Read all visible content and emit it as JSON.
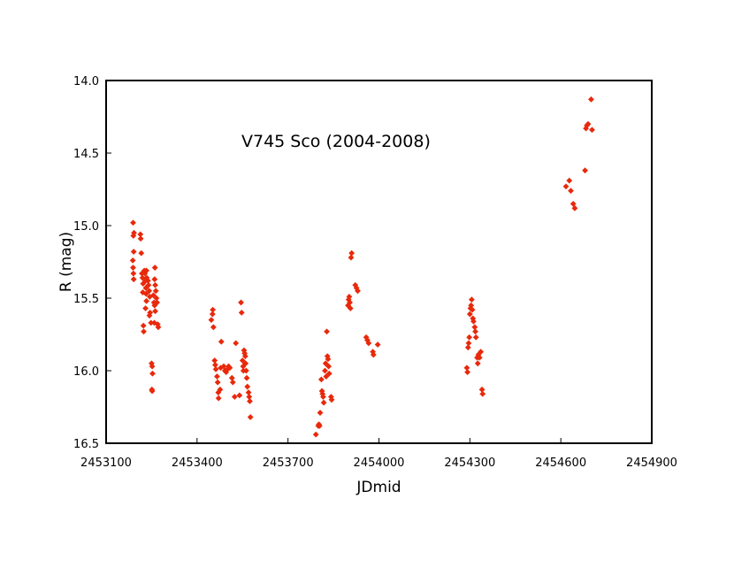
{
  "chart_data": {
    "type": "scatter",
    "title": "V745 Sco (2004-2008)",
    "xlabel": "JDmid",
    "ylabel": "R (mag)",
    "xlim": [
      2453100,
      2454900
    ],
    "ylim": [
      16.5,
      14.0
    ],
    "y_inverted": true,
    "grid": false,
    "legend": "none",
    "marker": "diamond",
    "marker_color": "#e8290b",
    "x_ticks": [
      "2453100",
      "2453400",
      "2453700",
      "2454000",
      "2454300",
      "2454600",
      "2454900"
    ],
    "y_ticks": [
      "14.0",
      "14.5",
      "15.0",
      "15.5",
      "16.0",
      "16.5"
    ],
    "x_tick_values": [
      2453100,
      2453400,
      2453700,
      2454000,
      2454300,
      2454600,
      2454900
    ],
    "y_tick_values": [
      14.0,
      14.5,
      15.0,
      15.5,
      16.0,
      16.5
    ],
    "points": [
      [
        2453189,
        14.98
      ],
      [
        2453192,
        15.05
      ],
      [
        2453190,
        15.07
      ],
      [
        2453191,
        15.18
      ],
      [
        2453188,
        15.24
      ],
      [
        2453189,
        15.29
      ],
      [
        2453190,
        15.33
      ],
      [
        2453191,
        15.37
      ],
      [
        2453213,
        15.06
      ],
      [
        2453214,
        15.09
      ],
      [
        2453216,
        15.19
      ],
      [
        2453218,
        15.33
      ],
      [
        2453220,
        15.36
      ],
      [
        2453222,
        15.4
      ],
      [
        2453221,
        15.46
      ],
      [
        2453223,
        15.69
      ],
      [
        2453224,
        15.73
      ],
      [
        2453226,
        15.31
      ],
      [
        2453228,
        15.33
      ],
      [
        2453230,
        15.38
      ],
      [
        2453231,
        15.43
      ],
      [
        2453232,
        15.47
      ],
      [
        2453233,
        15.52
      ],
      [
        2453230,
        15.57
      ],
      [
        2453233,
        15.31
      ],
      [
        2453234,
        15.36
      ],
      [
        2453238,
        15.38
      ],
      [
        2453240,
        15.41
      ],
      [
        2453242,
        15.45
      ],
      [
        2453244,
        15.49
      ],
      [
        2453245,
        15.6
      ],
      [
        2453248,
        15.67
      ],
      [
        2453243,
        15.62
      ],
      [
        2453250,
        15.95
      ],
      [
        2453252,
        15.97
      ],
      [
        2453253,
        16.02
      ],
      [
        2453251,
        16.13
      ],
      [
        2453252,
        16.14
      ],
      [
        2453256,
        15.48
      ],
      [
        2453258,
        15.53
      ],
      [
        2453260,
        15.55
      ],
      [
        2453262,
        15.59
      ],
      [
        2453259,
        15.67
      ],
      [
        2453261,
        15.29
      ],
      [
        2453260,
        15.37
      ],
      [
        2453262,
        15.41
      ],
      [
        2453264,
        15.45
      ],
      [
        2453266,
        15.5
      ],
      [
        2453268,
        15.53
      ],
      [
        2453270,
        15.68
      ],
      [
        2453272,
        15.7
      ],
      [
        2453447,
        15.65
      ],
      [
        2453452,
        15.58
      ],
      [
        2453451,
        15.61
      ],
      [
        2453454,
        15.7
      ],
      [
        2453458,
        15.93
      ],
      [
        2453460,
        15.96
      ],
      [
        2453462,
        15.99
      ],
      [
        2453466,
        16.04
      ],
      [
        2453468,
        16.08
      ],
      [
        2453470,
        16.15
      ],
      [
        2453471,
        16.19
      ],
      [
        2453476,
        16.13
      ],
      [
        2453478,
        15.98
      ],
      [
        2453480,
        15.8
      ],
      [
        2453488,
        15.97
      ],
      [
        2453492,
        16.0
      ],
      [
        2453496,
        16.01
      ],
      [
        2453500,
        15.99
      ],
      [
        2453504,
        15.97
      ],
      [
        2453508,
        15.98
      ],
      [
        2453515,
        16.05
      ],
      [
        2453518,
        16.08
      ],
      [
        2453524,
        16.18
      ],
      [
        2453528,
        15.81
      ],
      [
        2453540,
        16.17
      ],
      [
        2453545,
        15.53
      ],
      [
        2453547,
        15.6
      ],
      [
        2453550,
        15.93
      ],
      [
        2453552,
        15.97
      ],
      [
        2453553,
        16.0
      ],
      [
        2453555,
        15.86
      ],
      [
        2453557,
        15.88
      ],
      [
        2453559,
        15.9
      ],
      [
        2453560,
        15.95
      ],
      [
        2453562,
        16.0
      ],
      [
        2453564,
        16.05
      ],
      [
        2453566,
        16.11
      ],
      [
        2453570,
        16.15
      ],
      [
        2453572,
        16.18
      ],
      [
        2453574,
        16.21
      ],
      [
        2453576,
        16.32
      ],
      [
        2453792,
        16.44
      ],
      [
        2453800,
        16.38
      ],
      [
        2453802,
        16.37
      ],
      [
        2453804,
        16.38
      ],
      [
        2453806,
        16.29
      ],
      [
        2453810,
        16.06
      ],
      [
        2453812,
        16.14
      ],
      [
        2453814,
        16.16
      ],
      [
        2453816,
        16.18
      ],
      [
        2453818,
        16.22
      ],
      [
        2453822,
        16.0
      ],
      [
        2453824,
        15.95
      ],
      [
        2453826,
        16.04
      ],
      [
        2453828,
        15.73
      ],
      [
        2453830,
        15.9
      ],
      [
        2453832,
        15.92
      ],
      [
        2453834,
        15.97
      ],
      [
        2453836,
        16.02
      ],
      [
        2453842,
        16.18
      ],
      [
        2453844,
        16.2
      ],
      [
        2453898,
        15.55
      ],
      [
        2453900,
        15.51
      ],
      [
        2453902,
        15.49
      ],
      [
        2453904,
        15.53
      ],
      [
        2453906,
        15.57
      ],
      [
        2453908,
        15.22
      ],
      [
        2453910,
        15.19
      ],
      [
        2453922,
        15.41
      ],
      [
        2453926,
        15.43
      ],
      [
        2453930,
        15.45
      ],
      [
        2453958,
        15.77
      ],
      [
        2453962,
        15.79
      ],
      [
        2453966,
        15.81
      ],
      [
        2453980,
        15.87
      ],
      [
        2453982,
        15.89
      ],
      [
        2453996,
        15.82
      ],
      [
        2454290,
        15.98
      ],
      [
        2454292,
        16.01
      ],
      [
        2454294,
        15.84
      ],
      [
        2454296,
        15.81
      ],
      [
        2454298,
        15.77
      ],
      [
        2454300,
        15.61
      ],
      [
        2454302,
        15.57
      ],
      [
        2454304,
        15.55
      ],
      [
        2454306,
        15.51
      ],
      [
        2454308,
        15.58
      ],
      [
        2454310,
        15.64
      ],
      [
        2454312,
        15.66
      ],
      [
        2454316,
        15.7
      ],
      [
        2454318,
        15.73
      ],
      [
        2454320,
        15.77
      ],
      [
        2454324,
        15.91
      ],
      [
        2454326,
        15.95
      ],
      [
        2454328,
        15.89
      ],
      [
        2454332,
        15.91
      ],
      [
        2454336,
        15.87
      ],
      [
        2454340,
        16.13
      ],
      [
        2454342,
        16.16
      ],
      [
        2454617,
        14.73
      ],
      [
        2454628,
        14.69
      ],
      [
        2454633,
        14.76
      ],
      [
        2454641,
        14.85
      ],
      [
        2454646,
        14.88
      ],
      [
        2454680,
        14.62
      ],
      [
        2454683,
        14.33
      ],
      [
        2454686,
        14.31
      ],
      [
        2454690,
        14.3
      ],
      [
        2454700,
        14.13
      ],
      [
        2454703,
        14.34
      ]
    ]
  }
}
